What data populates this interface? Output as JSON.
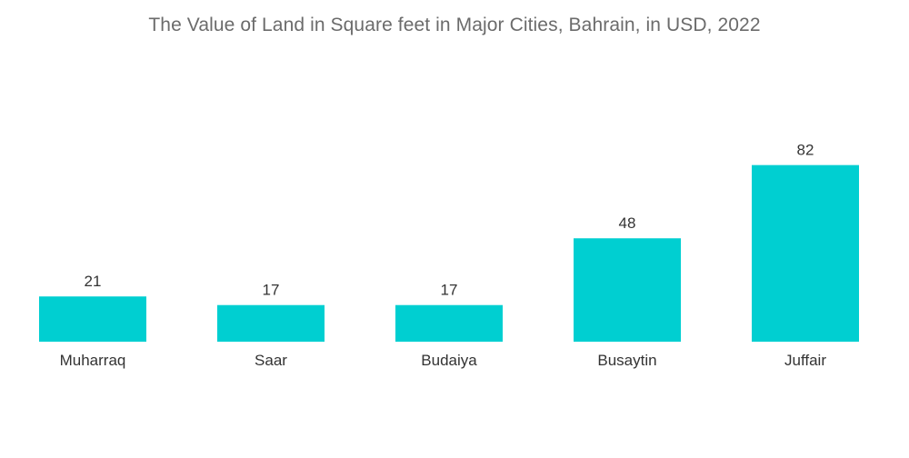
{
  "chart_data": {
    "type": "bar",
    "title": "The Value of Land in Square feet in Major Cities, Bahrain, in USD, 2022",
    "categories": [
      "Muharraq",
      "Saar",
      "Budaiya",
      "Busaytin",
      "Juffair"
    ],
    "values": [
      21,
      17,
      17,
      48,
      82
    ],
    "xlabel": "",
    "ylabel": "",
    "grid": false,
    "legend": "none",
    "bar_color": "#00cfd1"
  }
}
